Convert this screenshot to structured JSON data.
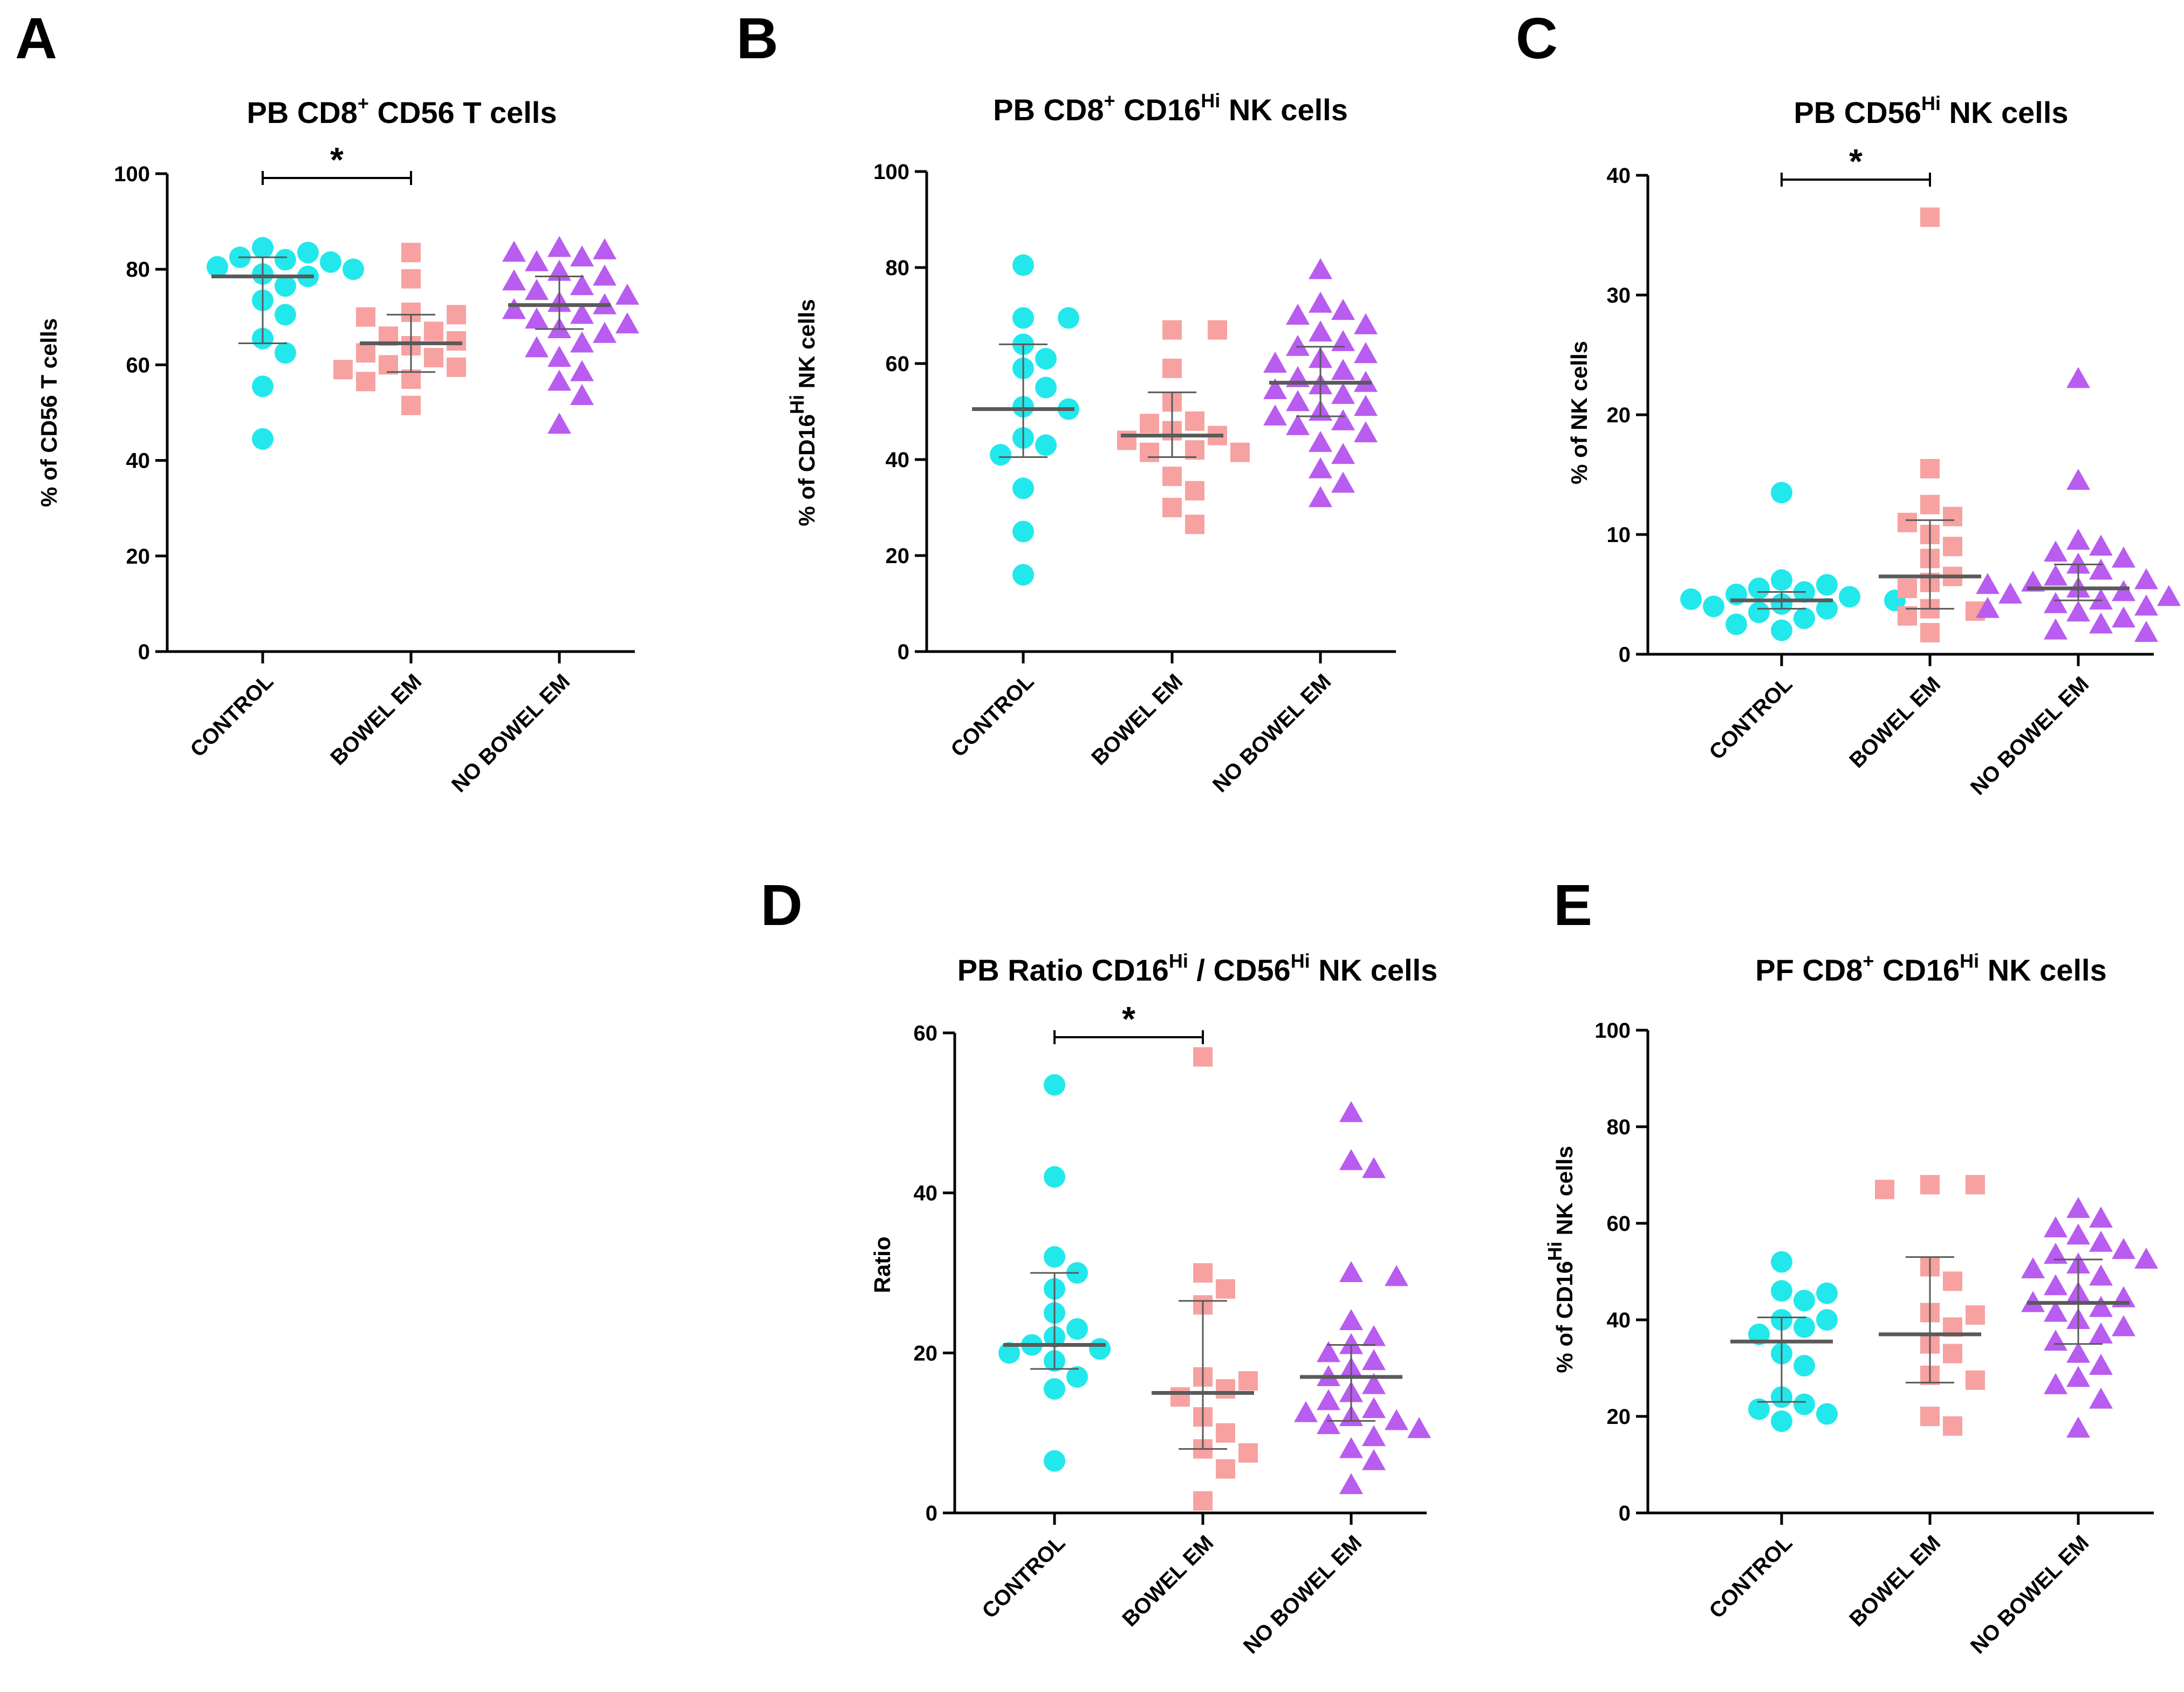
{
  "figure": {
    "background": "#ffffff"
  },
  "colors": {
    "control": "#22e8ec",
    "bowel_em": "#f7a1a1",
    "no_bowel_em": "#b95cf0",
    "stat": "#5a5a5a"
  },
  "categories": [
    "CONTROL",
    "BOWEL EM",
    "NO BOWEL EM"
  ],
  "chart_data": [
    {
      "id": "A",
      "letter": "A",
      "type": "scatter",
      "title": {
        "pre": "PB CD8",
        "sup1": "+",
        "mid": " CD56 T cells",
        "sup2": "",
        "post": ""
      },
      "ylabel": {
        "pre": "% of CD56 T cells",
        "sup": "",
        "post": ""
      },
      "ylim": [
        0,
        100
      ],
      "yticks": [
        0,
        20,
        40,
        60,
        80,
        100
      ],
      "significance": [
        {
          "from": 0,
          "to": 1,
          "label": "*"
        }
      ],
      "series": [
        {
          "name": "CONTROL",
          "marker": "circle",
          "median": 78.5,
          "q1": 64.5,
          "q3": 82.5,
          "values": [
            44.5,
            55.5,
            62.5,
            65.5,
            70.5,
            73.5,
            76.5,
            78.5,
            79.0,
            80.0,
            80.5,
            81.5,
            82.0,
            82.5,
            83.5,
            84.5
          ]
        },
        {
          "name": "BOWEL EM",
          "marker": "square",
          "median": 64.5,
          "q1": 58.5,
          "q3": 70.5,
          "values": [
            51.5,
            56.5,
            57.0,
            59.0,
            59.5,
            60.0,
            61.5,
            62.5,
            64.0,
            65.0,
            66.0,
            67.0,
            70.0,
            70.5,
            71.0,
            78.0,
            83.5
          ]
        },
        {
          "name": "NO BOWEL EM",
          "marker": "triangle",
          "median": 72.5,
          "q1": 67.5,
          "q3": 78.5,
          "values": [
            47.5,
            53.5,
            56.5,
            58.5,
            61.5,
            63.5,
            64.5,
            66.5,
            67.5,
            68.5,
            69.5,
            70.5,
            71.5,
            72.5,
            73.0,
            74.5,
            75.5,
            76.5,
            77.5,
            78.5,
            79.5,
            81.5,
            82.5,
            83.5,
            84.0,
            84.5
          ]
        }
      ]
    },
    {
      "id": "B",
      "letter": "B",
      "type": "scatter",
      "title": {
        "pre": "PB CD8",
        "sup1": "+",
        "mid": " CD16",
        "sup2": "Hi",
        "post": " NK cells"
      },
      "ylabel": {
        "pre": "% of CD16",
        "sup": "Hi",
        "post": " NK cells"
      },
      "ylim": [
        0,
        100
      ],
      "yticks": [
        0,
        20,
        40,
        60,
        80,
        100
      ],
      "significance": [],
      "series": [
        {
          "name": "CONTROL",
          "marker": "circle",
          "median": 50.5,
          "q1": 40.5,
          "q3": 64.0,
          "values": [
            16.0,
            25.0,
            34.0,
            41.0,
            43.0,
            44.5,
            50.5,
            51.0,
            55.0,
            59.0,
            61.0,
            64.0,
            69.5,
            69.5,
            80.5
          ]
        },
        {
          "name": "BOWEL EM",
          "marker": "square",
          "median": 45.0,
          "q1": 40.5,
          "q3": 54.0,
          "values": [
            26.5,
            30.0,
            33.5,
            36.5,
            41.5,
            41.5,
            42.0,
            44.0,
            45.0,
            46.0,
            47.5,
            48.0,
            52.0,
            59.0,
            67.0,
            67.0
          ]
        },
        {
          "name": "NO BOWEL EM",
          "marker": "triangle",
          "median": 56.0,
          "q1": 49.0,
          "q3": 63.5,
          "values": [
            32.0,
            35.0,
            38.0,
            41.0,
            43.5,
            45.5,
            47.0,
            48.0,
            49.0,
            50.0,
            51.0,
            52.0,
            53.5,
            54.5,
            55.5,
            56.0,
            57.0,
            58.5,
            60.0,
            61.0,
            62.0,
            63.5,
            64.5,
            66.5,
            68.0,
            70.0,
            71.0,
            72.5,
            79.5
          ]
        }
      ]
    },
    {
      "id": "C",
      "letter": "C",
      "type": "scatter",
      "title": {
        "pre": "PB CD56",
        "sup1": "Hi",
        "mid": " NK cells",
        "sup2": "",
        "post": ""
      },
      "ylabel": {
        "pre": "% of NK cells",
        "sup": "",
        "post": ""
      },
      "ylim": [
        0,
        40
      ],
      "yticks": [
        0,
        10,
        20,
        30,
        40
      ],
      "significance": [
        {
          "from": 0,
          "to": 1,
          "label": "*"
        }
      ],
      "series": [
        {
          "name": "CONTROL",
          "marker": "circle",
          "median": 4.5,
          "q1": 3.8,
          "q3": 5.2,
          "values": [
            2.0,
            2.5,
            3.0,
            3.5,
            3.8,
            4.0,
            4.2,
            4.5,
            4.6,
            4.8,
            5.0,
            5.2,
            5.5,
            5.8,
            6.2,
            13.5
          ]
        },
        {
          "name": "BOWEL EM",
          "marker": "square",
          "median": 6.5,
          "q1": 3.8,
          "q3": 11.2,
          "values": [
            1.8,
            3.2,
            3.6,
            3.8,
            5.5,
            6.0,
            6.5,
            8.0,
            9.0,
            10.0,
            11.0,
            11.5,
            12.5,
            15.5,
            36.5
          ]
        },
        {
          "name": "NO BOWEL EM",
          "marker": "triangle",
          "median": 5.5,
          "q1": 4.5,
          "q3": 7.5,
          "values": [
            1.8,
            2.0,
            2.5,
            3.0,
            3.5,
            3.8,
            4.0,
            4.2,
            4.5,
            4.8,
            5.0,
            5.2,
            5.5,
            5.8,
            6.0,
            6.2,
            6.5,
            7.0,
            7.5,
            8.0,
            8.5,
            9.0,
            9.5,
            14.5,
            23.0
          ]
        }
      ]
    },
    {
      "id": "D",
      "letter": "D",
      "type": "scatter",
      "title": {
        "pre": "PB Ratio CD16",
        "sup1": "Hi",
        "mid": " / CD56",
        "sup2": "Hi",
        "post": " NK cells"
      },
      "ylabel": {
        "pre": "Ratio",
        "sup": "",
        "post": ""
      },
      "ylim": [
        0,
        60
      ],
      "yticks": [
        0,
        20,
        40,
        60
      ],
      "significance": [
        {
          "from": 0,
          "to": 1,
          "label": "*"
        }
      ],
      "series": [
        {
          "name": "CONTROL",
          "marker": "circle",
          "median": 21.0,
          "q1": 18.0,
          "q3": 30.0,
          "values": [
            6.5,
            15.5,
            17.0,
            19.0,
            20.0,
            20.5,
            21.0,
            22.0,
            23.0,
            25.0,
            28.0,
            30.0,
            32.0,
            42.0,
            53.5
          ]
        },
        {
          "name": "BOWEL EM",
          "marker": "square",
          "median": 15.0,
          "q1": 8.0,
          "q3": 26.5,
          "values": [
            1.5,
            5.5,
            7.5,
            8.0,
            10.0,
            12.0,
            14.5,
            15.5,
            16.5,
            17.0,
            26.0,
            28.0,
            30.0,
            57.0
          ]
        },
        {
          "name": "NO BOWEL EM",
          "marker": "triangle",
          "median": 17.0,
          "q1": 11.5,
          "q3": 21.0,
          "values": [
            3.5,
            6.5,
            8.0,
            9.5,
            10.5,
            11.0,
            11.5,
            12.0,
            12.5,
            13.0,
            14.0,
            15.0,
            16.0,
            17.0,
            18.0,
            19.0,
            20.0,
            21.0,
            22.0,
            24.0,
            29.5,
            30.0,
            43.0,
            44.0,
            50.0
          ]
        }
      ]
    },
    {
      "id": "E",
      "letter": "E",
      "type": "scatter",
      "title": {
        "pre": "PF CD8",
        "sup1": "+",
        "mid": " CD16",
        "sup2": "Hi",
        "post": " NK cells"
      },
      "ylabel": {
        "pre": "% of CD16",
        "sup": "Hi",
        "post": " NK cells"
      },
      "ylim": [
        0,
        100
      ],
      "yticks": [
        0,
        20,
        40,
        60,
        80,
        100
      ],
      "significance": [],
      "series": [
        {
          "name": "CONTROL",
          "marker": "circle",
          "median": 35.5,
          "q1": 23.0,
          "q3": 40.5,
          "values": [
            19.0,
            20.5,
            21.5,
            22.5,
            24.0,
            30.5,
            33.0,
            37.0,
            38.5,
            40.0,
            40.0,
            44.0,
            45.5,
            46.0,
            52.0
          ]
        },
        {
          "name": "BOWEL EM",
          "marker": "square",
          "median": 37.0,
          "q1": 27.0,
          "q3": 53.0,
          "values": [
            18.0,
            20.0,
            27.5,
            28.5,
            33.0,
            35.0,
            38.5,
            41.0,
            41.5,
            48.0,
            51.0,
            67.0,
            68.0,
            68.0
          ]
        },
        {
          "name": "NO BOWEL EM",
          "marker": "triangle",
          "median": 43.5,
          "q1": 35.0,
          "q3": 52.5,
          "values": [
            17.5,
            23.5,
            26.5,
            28.0,
            30.5,
            33.0,
            35.5,
            37.0,
            38.5,
            40.0,
            41.5,
            42.5,
            43.5,
            44.5,
            45.5,
            47.0,
            49.0,
            50.5,
            51.5,
            52.5,
            53.5,
            54.5,
            56.0,
            57.5,
            59.0,
            61.0,
            63.0
          ]
        }
      ]
    }
  ]
}
